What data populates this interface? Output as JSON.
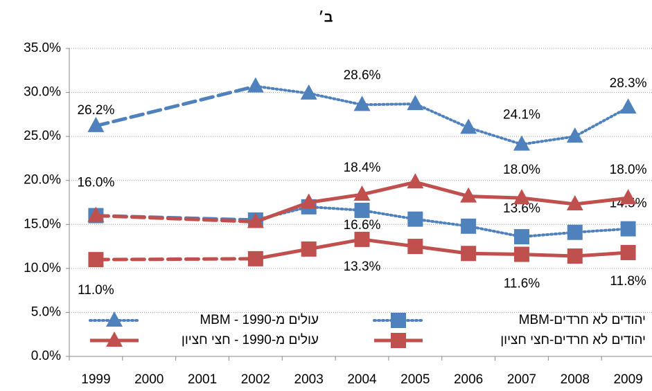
{
  "chart_data": {
    "type": "line",
    "title": "ב׳",
    "categories": [
      "1999",
      "2000",
      "2001",
      "2002",
      "2003",
      "2004",
      "2005",
      "2006",
      "2007",
      "2008",
      "2009"
    ],
    "ylim": [
      0,
      35
    ],
    "yticks": [
      {
        "value": 0,
        "label": "0.0%"
      },
      {
        "value": 5,
        "label": "5.0%"
      },
      {
        "value": 10,
        "label": "10.0%"
      },
      {
        "value": 15,
        "label": "15.0%"
      },
      {
        "value": 20,
        "label": "20.0%"
      },
      {
        "value": 25,
        "label": "25.0%"
      },
      {
        "value": 30,
        "label": "30.0%"
      },
      {
        "value": 35,
        "label": "35.0%"
      }
    ],
    "grid": true,
    "series": [
      {
        "name": "עולים מ-1990 - MBM",
        "color": "#4f81bd",
        "marker": "triangle",
        "line": "dotted",
        "values": [
          26.2,
          null,
          null,
          30.7,
          29.9,
          28.6,
          28.7,
          26.0,
          24.1,
          25.0,
          28.3
        ],
        "value_labels": [
          "26.2%",
          null,
          null,
          null,
          null,
          "28.6%",
          null,
          null,
          "24.1%",
          null,
          "28.3%"
        ]
      },
      {
        "name": "יהודים לא חרדים-MBM",
        "color": "#4f81bd",
        "marker": "square",
        "line": "dotted",
        "values": [
          16.0,
          null,
          null,
          15.5,
          17.0,
          16.6,
          15.6,
          14.8,
          13.6,
          14.1,
          14.5
        ],
        "value_labels": [
          null,
          null,
          null,
          null,
          null,
          "16.6%",
          null,
          null,
          "13.6%",
          null,
          "14.5%"
        ]
      },
      {
        "name": "עולים מ-1990 - חצי חציון",
        "color": "#c0504d",
        "marker": "triangle",
        "line": "solid",
        "values": [
          16.0,
          null,
          null,
          15.3,
          17.5,
          18.4,
          19.8,
          18.2,
          18.0,
          17.3,
          18.0
        ],
        "value_labels": [
          "16.0%",
          null,
          null,
          null,
          null,
          "18.4%",
          null,
          null,
          "18.0%",
          null,
          "18.0%"
        ]
      },
      {
        "name": "יהודים לא חרדים-חצי חציון",
        "color": "#c0504d",
        "marker": "square",
        "line": "solid",
        "values": [
          11.0,
          null,
          null,
          11.1,
          12.2,
          13.3,
          12.5,
          11.7,
          11.6,
          11.4,
          11.8
        ],
        "value_labels": [
          "11.0%",
          null,
          null,
          null,
          null,
          "13.3%",
          null,
          null,
          "11.6%",
          null,
          "11.8%"
        ]
      }
    ]
  }
}
